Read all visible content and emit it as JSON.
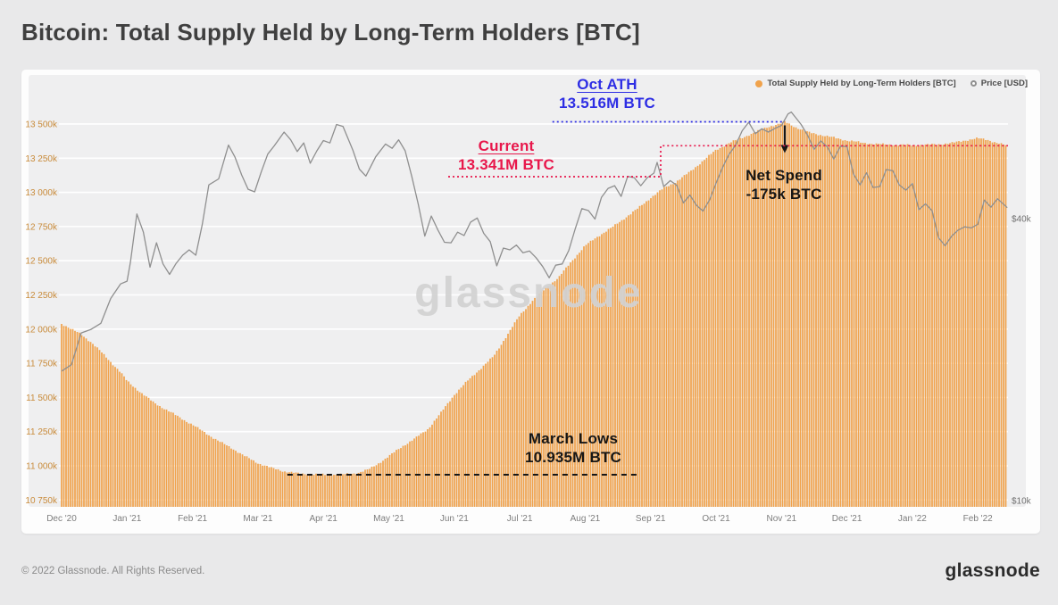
{
  "page": {
    "title": "Bitcoin: Total Supply Held by Long-Term Holders [BTC]",
    "watermark": "glassnode",
    "footer": {
      "copyright": "© 2022 Glassnode. All Rights Reserved.",
      "brand": "glassnode"
    }
  },
  "legend": {
    "position": "top-right",
    "items": [
      {
        "label": "Total Supply Held by Long-Term Holders [BTC]",
        "color": "#f0a24b"
      },
      {
        "label": "Price [USD]",
        "color": "#8f8f8f"
      }
    ]
  },
  "annotations": {
    "oct_ath": {
      "title": "Oct ATH",
      "value": "13.516M BTC",
      "value_k_btc": 13516,
      "color": "#2e2ee4",
      "line_from_month": 7.5,
      "line_to_month": 11.05
    },
    "current": {
      "title": "Current",
      "value": "13.341M BTC",
      "value_k_btc": 13341,
      "color": "#e8174b"
    },
    "net_spend": {
      "title": "Net Spend",
      "value": "-175k BTC",
      "arrow_month": 11.05,
      "color": "#161616"
    },
    "march_lows": {
      "title": "March Lows",
      "value": "10.935M BTC",
      "value_k_btc": 10935,
      "color": "#161616",
      "line_from_month": 3.45,
      "line_to_month": 8.8
    }
  },
  "chart_data": {
    "type": "bar",
    "title": "Bitcoin: Total Supply Held by Long-Term Holders [BTC]",
    "grid": true,
    "x_unit": "months since Dec 1 2020 (fractional)",
    "x_categories": [
      "Dec '20",
      "Jan '21",
      "Feb '21",
      "Mar '21",
      "Apr '21",
      "May '21",
      "Jun '21",
      "Jul '21",
      "Aug '21",
      "Sep '21",
      "Oct '21",
      "Nov '21",
      "Dec '21",
      "Jan '22",
      "Feb '22"
    ],
    "left_axis": {
      "unit": "BTC (thousands)",
      "range": [
        10700,
        13800
      ],
      "ticks": [
        10750,
        11000,
        11250,
        11500,
        11750,
        12000,
        12250,
        12500,
        12750,
        13000,
        13250,
        13500
      ],
      "tick_labels": [
        "10 750k",
        "11 000k",
        "11 250k",
        "11 500k",
        "11 750k",
        "12 000k",
        "12 250k",
        "12 500k",
        "12 750k",
        "13 000k",
        "13 250k",
        "13 500k"
      ]
    },
    "right_axis": {
      "unit": "USD (thousands)",
      "scale": "log",
      "ticks": [
        {
          "label": "$40k",
          "value": 40
        },
        {
          "label": "$10k",
          "value": 10
        }
      ]
    },
    "series": [
      {
        "name": "Total Supply Held by Long-Term Holders [BTC]",
        "type": "bar",
        "axis": "left",
        "unit": "k BTC",
        "color": "#f0a24b",
        "points": [
          [
            0,
            12040
          ],
          [
            0.15,
            12000
          ],
          [
            0.3,
            11960
          ],
          [
            0.45,
            11905
          ],
          [
            0.6,
            11835
          ],
          [
            0.75,
            11760
          ],
          [
            0.9,
            11685
          ],
          [
            1,
            11620
          ],
          [
            1.2,
            11540
          ],
          [
            1.4,
            11465
          ],
          [
            1.6,
            11410
          ],
          [
            1.8,
            11355
          ],
          [
            2,
            11300
          ],
          [
            2.2,
            11240
          ],
          [
            2.4,
            11180
          ],
          [
            2.6,
            11130
          ],
          [
            2.8,
            11070
          ],
          [
            3,
            11020
          ],
          [
            3.2,
            10985
          ],
          [
            3.4,
            10960
          ],
          [
            3.6,
            10945
          ],
          [
            3.8,
            10938
          ],
          [
            4,
            10936
          ],
          [
            4.1,
            10935
          ],
          [
            4.3,
            10937
          ],
          [
            4.5,
            10945
          ],
          [
            4.7,
            10975
          ],
          [
            4.85,
            11020
          ],
          [
            5,
            11070
          ],
          [
            5.2,
            11140
          ],
          [
            5.4,
            11200
          ],
          [
            5.6,
            11270
          ],
          [
            5.8,
            11390
          ],
          [
            6,
            11520
          ],
          [
            6.2,
            11620
          ],
          [
            6.4,
            11710
          ],
          [
            6.6,
            11800
          ],
          [
            6.8,
            11950
          ],
          [
            7,
            12100
          ],
          [
            7.2,
            12210
          ],
          [
            7.4,
            12300
          ],
          [
            7.6,
            12380
          ],
          [
            7.8,
            12500
          ],
          [
            8,
            12610
          ],
          [
            8.2,
            12680
          ],
          [
            8.4,
            12740
          ],
          [
            8.6,
            12810
          ],
          [
            8.8,
            12880
          ],
          [
            9,
            12960
          ],
          [
            9.2,
            13030
          ],
          [
            9.4,
            13080
          ],
          [
            9.6,
            13150
          ],
          [
            9.8,
            13230
          ],
          [
            10,
            13310
          ],
          [
            10.2,
            13360
          ],
          [
            10.4,
            13400
          ],
          [
            10.6,
            13440
          ],
          [
            10.8,
            13480
          ],
          [
            11,
            13505
          ],
          [
            11.05,
            13516
          ],
          [
            11.2,
            13480
          ],
          [
            11.4,
            13440
          ],
          [
            11.6,
            13420
          ],
          [
            11.8,
            13400
          ],
          [
            12,
            13380
          ],
          [
            12.2,
            13365
          ],
          [
            12.4,
            13355
          ],
          [
            12.6,
            13350
          ],
          [
            12.8,
            13347
          ],
          [
            13,
            13345
          ],
          [
            13.2,
            13348
          ],
          [
            13.4,
            13352
          ],
          [
            13.6,
            13360
          ],
          [
            13.8,
            13380
          ],
          [
            14,
            13395
          ],
          [
            14.15,
            13385
          ],
          [
            14.3,
            13360
          ],
          [
            14.45,
            13341
          ]
        ]
      },
      {
        "name": "Price [USD]",
        "type": "line",
        "axis": "right",
        "unit": "$k",
        "color": "#8f8f8f",
        "points": [
          [
            0,
            18.9
          ],
          [
            0.15,
            19.5
          ],
          [
            0.3,
            22.8
          ],
          [
            0.45,
            23.2
          ],
          [
            0.6,
            23.9
          ],
          [
            0.75,
            27.0
          ],
          [
            0.9,
            29.0
          ],
          [
            1,
            29.4
          ],
          [
            1.05,
            32.2
          ],
          [
            1.15,
            40.9
          ],
          [
            1.25,
            37.4
          ],
          [
            1.35,
            31.5
          ],
          [
            1.45,
            35.5
          ],
          [
            1.55,
            32.0
          ],
          [
            1.65,
            30.4
          ],
          [
            1.75,
            32.1
          ],
          [
            1.85,
            33.4
          ],
          [
            1.95,
            34.3
          ],
          [
            2.05,
            33.4
          ],
          [
            2.15,
            38.9
          ],
          [
            2.25,
            47.2
          ],
          [
            2.4,
            48.6
          ],
          [
            2.55,
            57.4
          ],
          [
            2.65,
            54.1
          ],
          [
            2.75,
            49.6
          ],
          [
            2.85,
            46.2
          ],
          [
            2.95,
            45.6
          ],
          [
            3.05,
            50.3
          ],
          [
            3.15,
            54.9
          ],
          [
            3.25,
            57.2
          ],
          [
            3.4,
            61.2
          ],
          [
            3.5,
            58.9
          ],
          [
            3.6,
            55.6
          ],
          [
            3.7,
            58.0
          ],
          [
            3.8,
            52.5
          ],
          [
            3.9,
            55.8
          ],
          [
            4,
            58.7
          ],
          [
            4.1,
            58.0
          ],
          [
            4.2,
            63.5
          ],
          [
            4.3,
            62.9
          ],
          [
            4.45,
            56.0
          ],
          [
            4.55,
            51.0
          ],
          [
            4.65,
            49.3
          ],
          [
            4.8,
            54.2
          ],
          [
            4.95,
            57.7
          ],
          [
            5.05,
            56.5
          ],
          [
            5.15,
            58.9
          ],
          [
            5.25,
            55.8
          ],
          [
            5.35,
            49.2
          ],
          [
            5.45,
            42.9
          ],
          [
            5.55,
            36.7
          ],
          [
            5.65,
            40.5
          ],
          [
            5.75,
            37.8
          ],
          [
            5.85,
            35.6
          ],
          [
            5.95,
            35.5
          ],
          [
            6.05,
            37.4
          ],
          [
            6.15,
            36.8
          ],
          [
            6.25,
            39.3
          ],
          [
            6.35,
            40.1
          ],
          [
            6.45,
            37.2
          ],
          [
            6.55,
            35.7
          ],
          [
            6.65,
            31.7
          ],
          [
            6.75,
            34.6
          ],
          [
            6.85,
            34.3
          ],
          [
            6.95,
            35.1
          ],
          [
            7.05,
            33.8
          ],
          [
            7.15,
            34.1
          ],
          [
            7.25,
            33.0
          ],
          [
            7.35,
            31.6
          ],
          [
            7.45,
            29.9
          ],
          [
            7.55,
            31.8
          ],
          [
            7.65,
            32.0
          ],
          [
            7.75,
            34.2
          ],
          [
            7.85,
            38.1
          ],
          [
            7.95,
            42.0
          ],
          [
            8.05,
            41.6
          ],
          [
            8.15,
            39.9
          ],
          [
            8.25,
            44.4
          ],
          [
            8.35,
            46.4
          ],
          [
            8.45,
            47.0
          ],
          [
            8.55,
            44.6
          ],
          [
            8.65,
            49.2
          ],
          [
            8.75,
            48.9
          ],
          [
            8.85,
            47.0
          ],
          [
            8.95,
            48.9
          ],
          [
            9.05,
            50.0
          ],
          [
            9.1,
            52.7
          ],
          [
            9.2,
            46.8
          ],
          [
            9.3,
            48.2
          ],
          [
            9.4,
            47.1
          ],
          [
            9.5,
            43.2
          ],
          [
            9.6,
            44.9
          ],
          [
            9.7,
            42.7
          ],
          [
            9.8,
            41.5
          ],
          [
            9.9,
            43.8
          ],
          [
            10,
            47.6
          ],
          [
            10.1,
            51.4
          ],
          [
            10.2,
            54.9
          ],
          [
            10.3,
            57.4
          ],
          [
            10.4,
            61.6
          ],
          [
            10.5,
            64.2
          ],
          [
            10.6,
            60.7
          ],
          [
            10.7,
            62.2
          ],
          [
            10.8,
            61.2
          ],
          [
            10.9,
            62.3
          ],
          [
            11,
            63.2
          ],
          [
            11.1,
            66.9
          ],
          [
            11.15,
            67.5
          ],
          [
            11.3,
            63.5
          ],
          [
            11.4,
            60.2
          ],
          [
            11.5,
            56.2
          ],
          [
            11.6,
            58.6
          ],
          [
            11.7,
            56.9
          ],
          [
            11.8,
            53.6
          ],
          [
            11.9,
            57.1
          ],
          [
            12,
            57.0
          ],
          [
            12.1,
            49.8
          ],
          [
            12.2,
            47.2
          ],
          [
            12.3,
            50.1
          ],
          [
            12.4,
            46.6
          ],
          [
            12.5,
            46.8
          ],
          [
            12.6,
            50.9
          ],
          [
            12.7,
            50.6
          ],
          [
            12.8,
            47.2
          ],
          [
            12.9,
            46.0
          ],
          [
            13,
            47.5
          ],
          [
            13.1,
            41.8
          ],
          [
            13.2,
            43.0
          ],
          [
            13.3,
            41.6
          ],
          [
            13.4,
            36.4
          ],
          [
            13.5,
            35.0
          ],
          [
            13.6,
            36.7
          ],
          [
            13.7,
            37.8
          ],
          [
            13.8,
            38.4
          ],
          [
            13.9,
            38.2
          ],
          [
            14,
            38.9
          ],
          [
            14.1,
            43.8
          ],
          [
            14.2,
            42.3
          ],
          [
            14.3,
            44.1
          ],
          [
            14.45,
            42.2
          ]
        ]
      }
    ]
  }
}
